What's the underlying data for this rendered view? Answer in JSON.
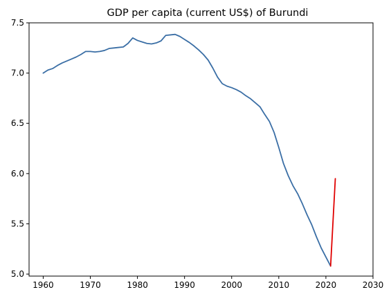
{
  "chart_data": {
    "type": "line",
    "title": "GDP per capita (current US$) of Burundi",
    "xlabel": "",
    "ylabel": "",
    "xlim": [
      1957,
      2030
    ],
    "ylim": [
      4.98,
      7.5
    ],
    "x_ticks": [
      1960,
      1970,
      1980,
      1990,
      2000,
      2010,
      2020,
      2030
    ],
    "y_ticks": [
      5.0,
      5.5,
      6.0,
      6.5,
      7.0,
      7.5
    ],
    "y_tick_labels": [
      "5.0",
      "5.5",
      "6.0",
      "6.5",
      "7.0",
      "7.5"
    ],
    "grid": false,
    "legend": "none",
    "series": [
      {
        "color": "#3a6ea5",
        "x": [
          1960,
          1961,
          1962,
          1963,
          1964,
          1965,
          1966,
          1967,
          1968,
          1969,
          1970,
          1971,
          1972,
          1973,
          1974,
          1975,
          1976,
          1977,
          1978,
          1979,
          1980,
          1981,
          1982,
          1983,
          1984,
          1985,
          1986,
          1987,
          1988,
          1989,
          1990,
          1991,
          1992,
          1993,
          1994,
          1995,
          1996,
          1997,
          1998,
          1999,
          2000,
          2001,
          2002,
          2003,
          2004,
          2005,
          2006,
          2007,
          2008,
          2009,
          2010,
          2011,
          2012,
          2013,
          2014,
          2015,
          2016,
          2017,
          2018,
          2019,
          2020,
          2021
        ],
        "y": [
          7.0,
          7.03,
          7.045,
          7.075,
          7.1,
          7.12,
          7.14,
          7.16,
          7.185,
          7.215,
          7.215,
          7.21,
          7.215,
          7.225,
          7.245,
          7.25,
          7.255,
          7.26,
          7.295,
          7.35,
          7.325,
          7.31,
          7.295,
          7.29,
          7.3,
          7.32,
          7.375,
          7.38,
          7.385,
          7.365,
          7.335,
          7.305,
          7.27,
          7.23,
          7.185,
          7.13,
          7.05,
          6.96,
          6.895,
          6.87,
          6.855,
          6.835,
          6.81,
          6.775,
          6.745,
          6.705,
          6.665,
          6.59,
          6.52,
          6.41,
          6.26,
          6.1,
          5.98,
          5.88,
          5.8,
          5.7,
          5.59,
          5.49,
          5.37,
          5.26,
          5.17,
          5.08
        ]
      },
      {
        "color": "#e00000",
        "x": [
          2021,
          2022
        ],
        "y": [
          5.08,
          5.95
        ]
      }
    ]
  }
}
